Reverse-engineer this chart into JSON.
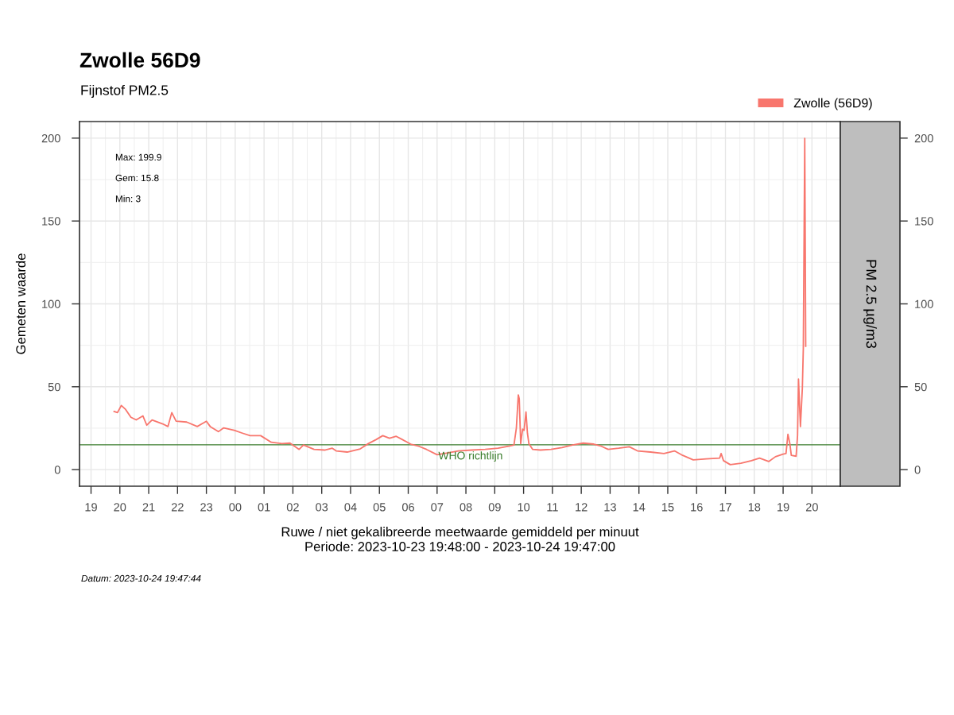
{
  "chart_data": {
    "type": "line",
    "title": "Zwolle 56D9",
    "subtitle": "Fijnstof PM2.5",
    "xlabel": "Ruwe / niet gekalibreerde meetwaarde gemiddeld per minuut\nPeriode: 2023-10-23 19:48:00 - 2023-10-24 19:47:00",
    "ylabel": "Gemeten waarde",
    "annotations": [
      "Max: 199.9",
      "Gem: 15.8",
      "Min: 3",
      "PM 2.5 µg/m3",
      "Datum: 2023-10-24 19:47:44"
    ],
    "x": [
      "2023-10-23T19:48",
      "2023-10-23T19:55",
      "2023-10-23T20:03",
      "2023-10-23T20:12",
      "2023-10-23T20:23",
      "2023-10-23T20:34",
      "2023-10-23T20:48",
      "2023-10-23T20:56",
      "2023-10-23T21:07",
      "2023-10-23T21:29",
      "2023-10-23T21:40",
      "2023-10-23T21:48",
      "2023-10-23T21:57",
      "2023-10-23T22:19",
      "2023-10-23T22:41",
      "2023-10-23T23:00",
      "2023-10-23T23:08",
      "2023-10-23T23:25",
      "2023-10-23T23:36",
      "2023-10-23T23:58",
      "2023-10-24T00:15",
      "2023-10-24T00:31",
      "2023-10-24T00:53",
      "2023-10-24T01:15",
      "2023-10-24T01:37",
      "2023-10-24T01:54",
      "2023-10-24T02:13",
      "2023-10-24T02:22",
      "2023-10-24T02:44",
      "2023-10-24T03:06",
      "2023-10-24T03:22",
      "2023-10-24T03:30",
      "2023-10-24T03:53",
      "2023-10-24T04:20",
      "2023-10-24T04:37",
      "2023-10-24T04:53",
      "2023-10-24T05:07",
      "2023-10-24T05:21",
      "2023-10-24T05:35",
      "2023-10-24T05:48",
      "2023-10-24T06:05",
      "2023-10-24T06:22",
      "2023-10-24T06:38",
      "2023-10-24T07:00",
      "2023-10-24T07:22",
      "2023-10-24T07:44",
      "2023-10-24T08:12",
      "2023-10-24T08:40",
      "2023-10-24T09:07",
      "2023-10-24T09:29",
      "2023-10-24T09:40",
      "2023-10-24T09:45",
      "2023-10-24T09:49",
      "2023-10-24T09:51",
      "2023-10-24T09:54",
      "2023-10-24T09:58",
      "2023-10-24T10:01",
      "2023-10-24T10:05",
      "2023-10-24T10:08",
      "2023-10-24T10:11",
      "2023-10-24T10:19",
      "2023-10-24T10:35",
      "2023-10-24T10:57",
      "2023-10-24T11:20",
      "2023-10-24T11:42",
      "2023-10-24T12:04",
      "2023-10-24T12:26",
      "2023-10-24T12:42",
      "2023-10-24T12:56",
      "2023-10-24T13:18",
      "2023-10-24T13:40",
      "2023-10-24T13:57",
      "2023-10-24T14:24",
      "2023-10-24T14:52",
      "2023-10-24T15:14",
      "2023-10-24T15:31",
      "2023-10-24T15:53",
      "2023-10-24T16:20",
      "2023-10-24T16:48",
      "2023-10-24T16:51",
      "2023-10-24T16:56",
      "2023-10-24T17:10",
      "2023-10-24T17:32",
      "2023-10-24T17:54",
      "2023-10-24T18:11",
      "2023-10-24T18:30",
      "2023-10-24T18:44",
      "2023-10-24T19:00",
      "2023-10-24T19:06",
      "2023-10-24T19:10",
      "2023-10-24T19:14",
      "2023-10-24T19:17",
      "2023-10-24T19:27",
      "2023-10-24T19:30",
      "2023-10-24T19:32",
      "2023-10-24T19:36",
      "2023-10-24T19:40",
      "2023-10-24T19:42",
      "2023-10-24T19:45",
      "2023-10-24T19:47"
    ],
    "series": [
      {
        "name": "Zwolle (56D9)",
        "color": "#f8766d",
        "values": [
          35.1,
          34.4,
          38.7,
          36.3,
          31.6,
          30,
          32.4,
          26.8,
          30,
          27.6,
          26,
          34.4,
          29.2,
          28.7,
          26,
          29.2,
          26,
          22.9,
          25.2,
          23.7,
          22,
          20.5,
          20.5,
          16.5,
          15.7,
          16,
          12.2,
          14.9,
          12.2,
          11.8,
          12.9,
          11.3,
          10.6,
          12.5,
          15.7,
          18.1,
          20.5,
          18.9,
          20.1,
          18.1,
          15.4,
          14.1,
          12.2,
          9,
          10.1,
          11.3,
          11.8,
          12.2,
          12.9,
          14.1,
          14.9,
          25.2,
          45.1,
          42.7,
          15.7,
          24.4,
          23.7,
          34.8,
          22,
          15.7,
          12.2,
          11.8,
          12.2,
          13.3,
          14.9,
          16,
          15.4,
          14.1,
          12.2,
          12.9,
          13.8,
          11.3,
          10.6,
          9.7,
          11.3,
          8.6,
          5.9,
          6.5,
          7,
          9.7,
          5.4,
          3,
          3.8,
          5.4,
          7,
          4.9,
          7.8,
          9.4,
          9.7,
          21.3,
          15.7,
          8.6,
          8.1,
          20.5,
          54.6,
          26,
          49,
          72.9,
          199.9,
          74.4
        ]
      }
    ],
    "xlim": [
      "2023-10-23T18:36",
      "2023-10-24T20:59"
    ],
    "xticks": [
      {
        "value": "2023-10-23T19:00",
        "label": "19"
      },
      {
        "value": "2023-10-23T20:00",
        "label": "20"
      },
      {
        "value": "2023-10-23T21:00",
        "label": "21"
      },
      {
        "value": "2023-10-23T22:00",
        "label": "22"
      },
      {
        "value": "2023-10-23T23:00",
        "label": "23"
      },
      {
        "value": "2023-10-24T00:00",
        "label": "00"
      },
      {
        "value": "2023-10-24T01:00",
        "label": "01"
      },
      {
        "value": "2023-10-24T02:00",
        "label": "02"
      },
      {
        "value": "2023-10-24T03:00",
        "label": "03"
      },
      {
        "value": "2023-10-24T04:00",
        "label": "04"
      },
      {
        "value": "2023-10-24T05:00",
        "label": "05"
      },
      {
        "value": "2023-10-24T06:00",
        "label": "06"
      },
      {
        "value": "2023-10-24T07:00",
        "label": "07"
      },
      {
        "value": "2023-10-24T08:00",
        "label": "08"
      },
      {
        "value": "2023-10-24T09:00",
        "label": "09"
      },
      {
        "value": "2023-10-24T10:00",
        "label": "10"
      },
      {
        "value": "2023-10-24T11:00",
        "label": "11"
      },
      {
        "value": "2023-10-24T12:00",
        "label": "12"
      },
      {
        "value": "2023-10-24T13:00",
        "label": "13"
      },
      {
        "value": "2023-10-24T14:00",
        "label": "14"
      },
      {
        "value": "2023-10-24T15:00",
        "label": "15"
      },
      {
        "value": "2023-10-24T16:00",
        "label": "16"
      },
      {
        "value": "2023-10-24T17:00",
        "label": "17"
      },
      {
        "value": "2023-10-24T18:00",
        "label": "18"
      },
      {
        "value": "2023-10-24T19:00",
        "label": "19"
      },
      {
        "value": "2023-10-24T20:00",
        "label": "20"
      }
    ],
    "ylim": [
      -10,
      210
    ],
    "yticks": [
      0,
      50,
      100,
      150,
      200
    ],
    "y2lim": [
      -10,
      210
    ],
    "y2ticks": [
      0,
      50,
      100,
      150,
      200
    ],
    "ref_lines": [
      {
        "axis": "y",
        "value": 15,
        "label": "WHO richtlijn",
        "color": "#3a7d2c"
      }
    ],
    "grid": true,
    "legend": "top right"
  }
}
